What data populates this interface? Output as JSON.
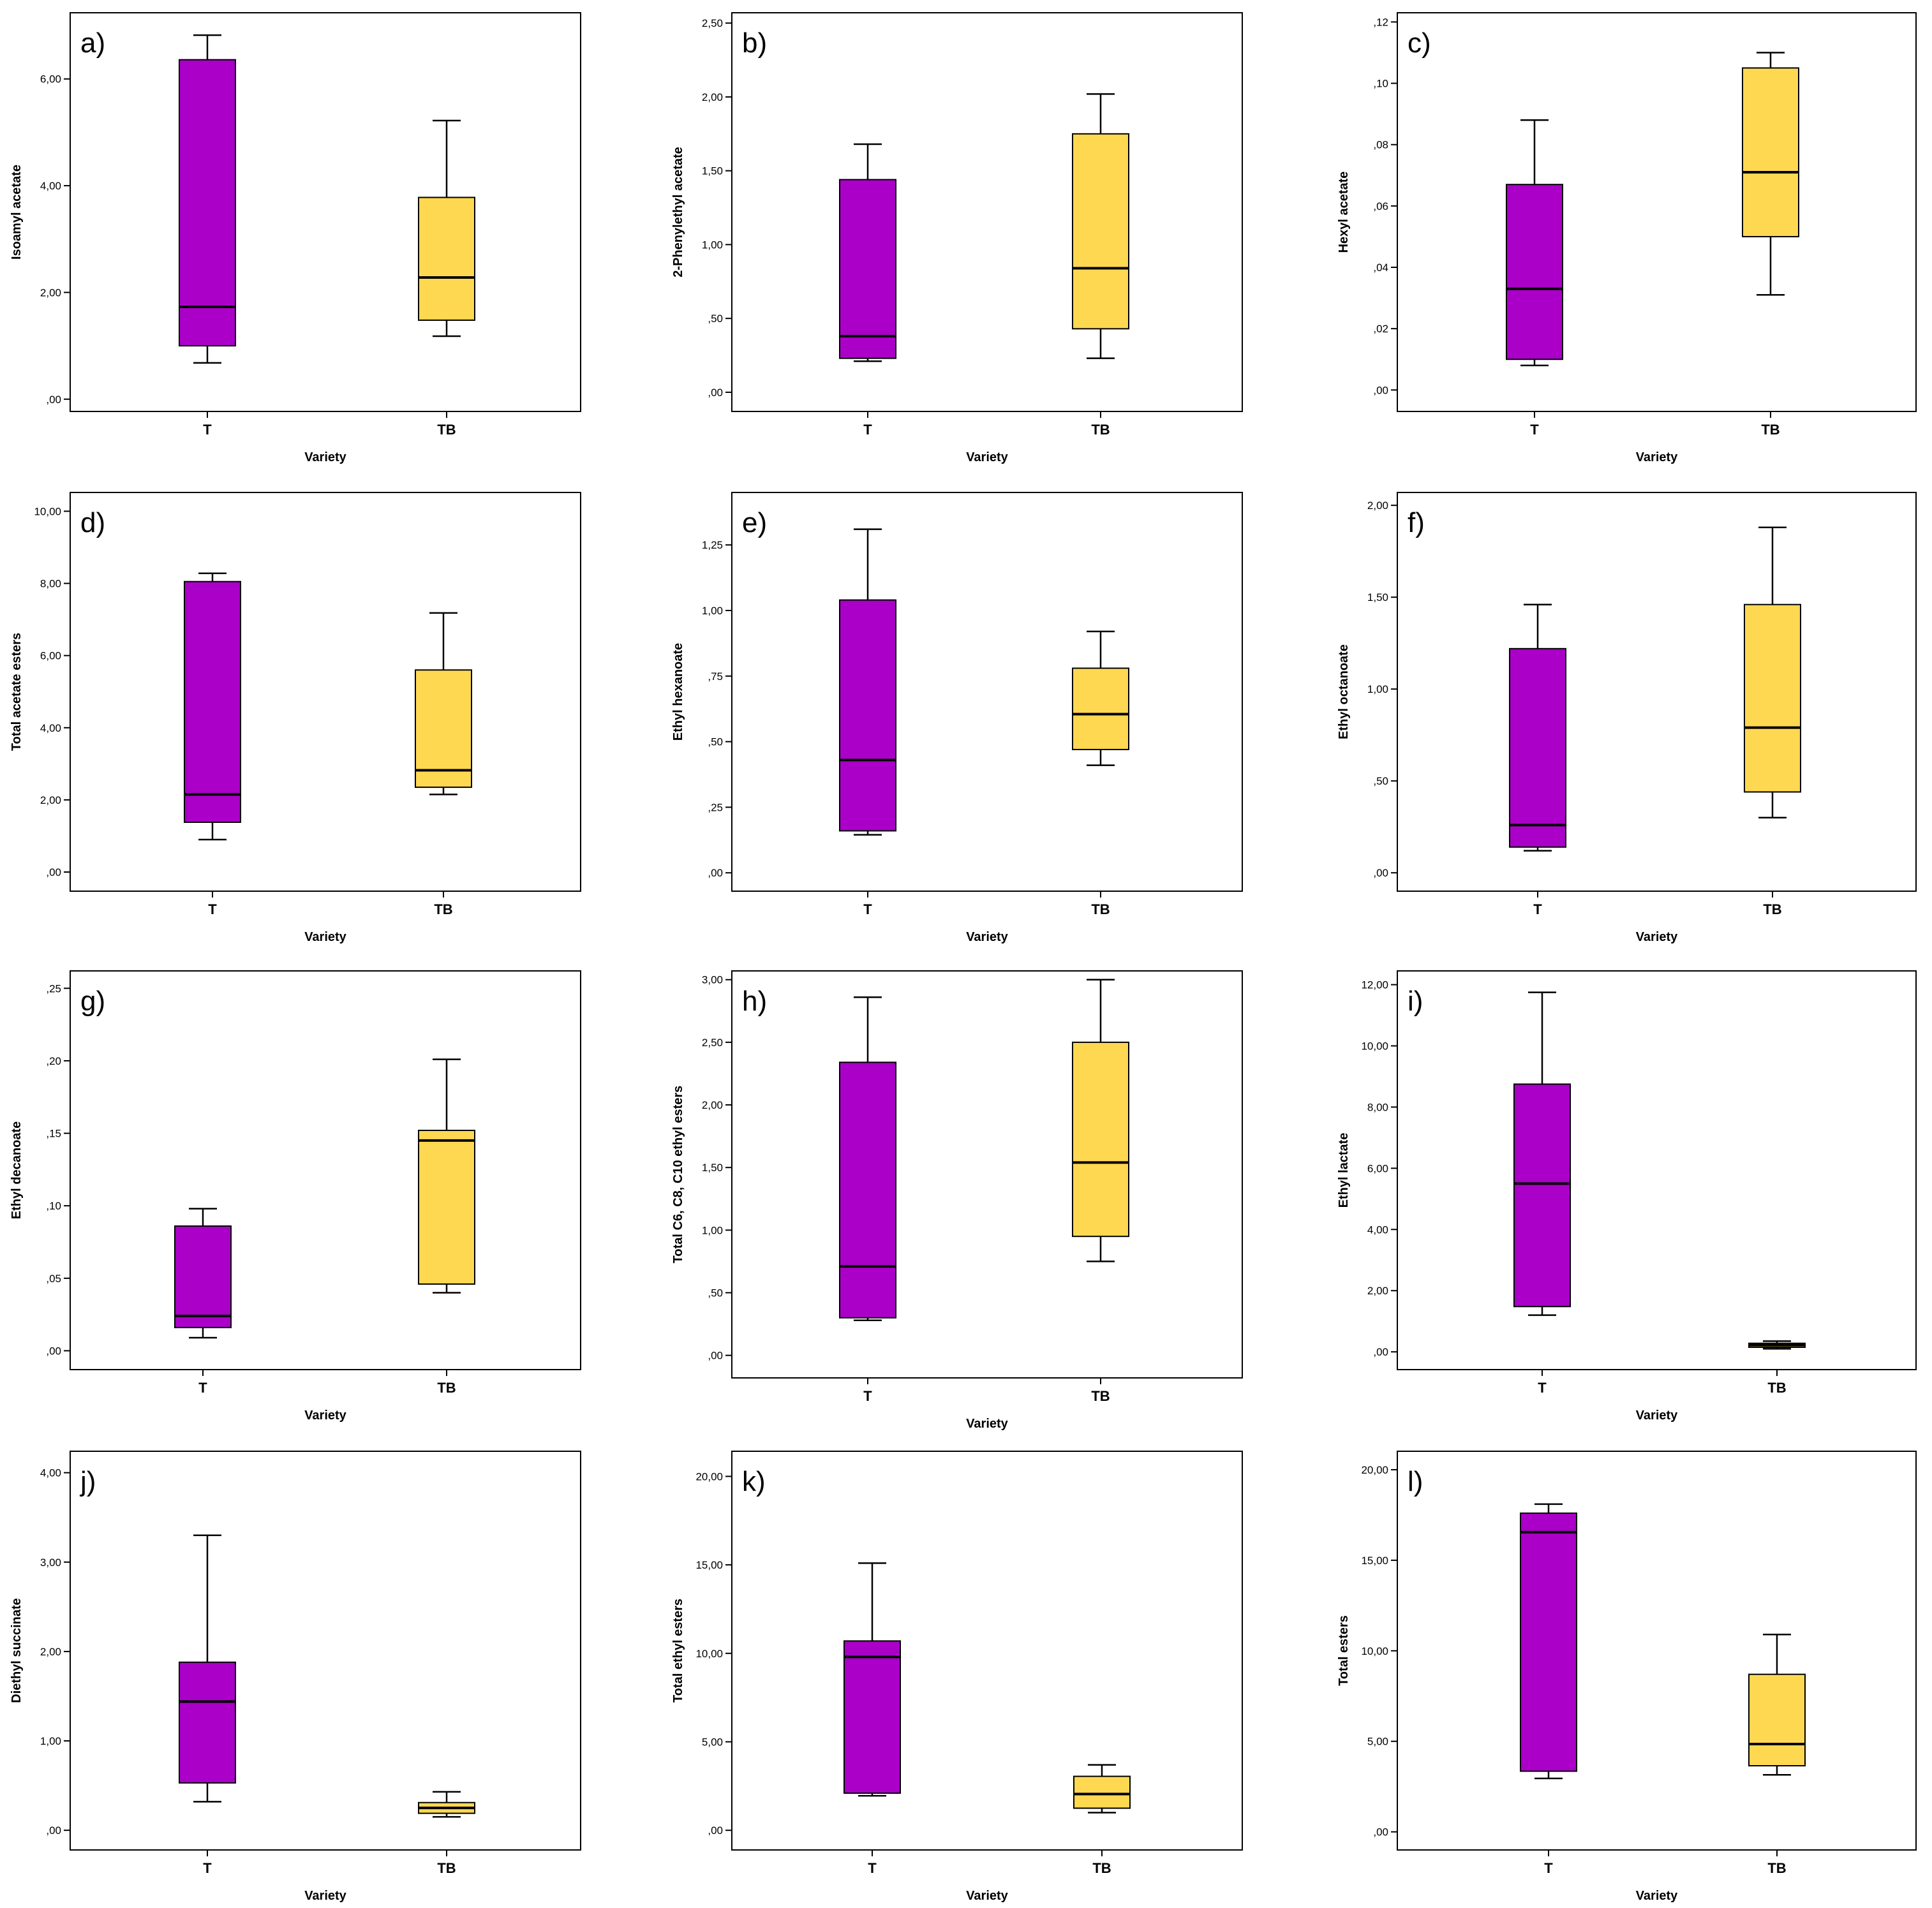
{
  "colors": {
    "T": "#AA00C8",
    "TB": "#FFD852",
    "stroke": "#000000"
  },
  "chart_data": [
    {
      "type": "boxplot",
      "panel_label": "a)",
      "xlabel": "Variety",
      "ylabel": "Isoamyl acetate",
      "categories": [
        "T",
        "TB"
      ],
      "boxes": [
        {
          "category": "T",
          "min": 0.68,
          "q1": 1.0,
          "median": 1.73,
          "q3": 6.36,
          "max": 6.82
        },
        {
          "category": "TB",
          "min": 1.18,
          "q1": 1.48,
          "median": 2.28,
          "q3": 3.78,
          "max": 5.22
        }
      ],
      "ylim": [
        -0.23,
        7.24
      ],
      "yticks": [
        0,
        2,
        4,
        6
      ],
      "ytick_labels": [
        ",00",
        "2,00",
        "4,00",
        "6,00"
      ]
    },
    {
      "type": "boxplot",
      "panel_label": "b)",
      "xlabel": "Variety",
      "ylabel": "2-Phenylethyl acetate",
      "categories": [
        "T",
        "TB"
      ],
      "boxes": [
        {
          "category": "T",
          "min": 0.21,
          "q1": 0.23,
          "median": 0.38,
          "q3": 1.44,
          "max": 1.68
        },
        {
          "category": "TB",
          "min": 0.23,
          "q1": 0.43,
          "median": 0.84,
          "q3": 1.75,
          "max": 2.02
        }
      ],
      "ylim": [
        -0.13,
        2.57
      ],
      "yticks": [
        0,
        0.5,
        1.0,
        1.5,
        2.0,
        2.5
      ],
      "ytick_labels": [
        ",00",
        ",50",
        "1,00",
        "1,50",
        "2,00",
        "2,50"
      ]
    },
    {
      "type": "boxplot",
      "panel_label": "c)",
      "xlabel": "Variety",
      "ylabel": "Hexyl acetate",
      "categories": [
        "T",
        "TB"
      ],
      "boxes": [
        {
          "category": "T",
          "min": 0.008,
          "q1": 0.01,
          "median": 0.033,
          "q3": 0.067,
          "max": 0.088
        },
        {
          "category": "TB",
          "min": 0.031,
          "q1": 0.05,
          "median": 0.071,
          "q3": 0.105,
          "max": 0.11
        }
      ],
      "ylim": [
        -0.007,
        0.123
      ],
      "yticks": [
        0,
        0.02,
        0.04,
        0.06,
        0.08,
        0.1,
        0.12
      ],
      "ytick_labels": [
        ",00",
        ",02",
        ",04",
        ",06",
        ",08",
        ",10",
        ",12"
      ]
    },
    {
      "type": "boxplot",
      "panel_label": "d)",
      "xlabel": "Variety",
      "ylabel": "Total acetate esters",
      "categories": [
        "T",
        "TB"
      ],
      "boxes": [
        {
          "category": "T",
          "min": 0.9,
          "q1": 1.38,
          "median": 2.15,
          "q3": 8.05,
          "max": 8.28
        },
        {
          "category": "TB",
          "min": 2.15,
          "q1": 2.35,
          "median": 2.82,
          "q3": 5.6,
          "max": 7.18
        }
      ],
      "ylim": [
        -0.53,
        10.52
      ],
      "yticks": [
        0,
        2,
        4,
        6,
        8,
        10
      ],
      "ytick_labels": [
        ",00",
        "2,00",
        "4,00",
        "6,00",
        "8,00",
        "10,00"
      ]
    },
    {
      "type": "boxplot",
      "panel_label": "e)",
      "xlabel": "Variety",
      "ylabel": "Ethyl hexanoate",
      "categories": [
        "T",
        "TB"
      ],
      "boxes": [
        {
          "category": "T",
          "min": 0.145,
          "q1": 0.16,
          "median": 0.43,
          "q3": 1.04,
          "max": 1.31
        },
        {
          "category": "TB",
          "min": 0.41,
          "q1": 0.47,
          "median": 0.605,
          "q3": 0.78,
          "max": 0.92
        }
      ],
      "ylim": [
        -0.07,
        1.45
      ],
      "yticks": [
        0,
        0.25,
        0.5,
        0.75,
        1.0,
        1.25
      ],
      "ytick_labels": [
        ",00",
        ",25",
        ",50",
        ",75",
        "1,00",
        "1,25"
      ]
    },
    {
      "type": "boxplot",
      "panel_label": "f)",
      "xlabel": "Variety",
      "ylabel": "Ethyl octanoate",
      "categories": [
        "T",
        "TB"
      ],
      "boxes": [
        {
          "category": "T",
          "min": 0.12,
          "q1": 0.14,
          "median": 0.26,
          "q3": 1.22,
          "max": 1.46
        },
        {
          "category": "TB",
          "min": 0.3,
          "q1": 0.44,
          "median": 0.79,
          "q3": 1.46,
          "max": 1.88
        }
      ],
      "ylim": [
        -0.1,
        2.07
      ],
      "yticks": [
        0,
        0.5,
        1.0,
        1.5,
        2.0
      ],
      "ytick_labels": [
        ",00",
        ",50",
        "1,00",
        "1,50",
        "2,00"
      ]
    },
    {
      "type": "boxplot",
      "panel_label": "g)",
      "xlabel": "Variety",
      "ylabel": "Ethyl decanoate",
      "categories": [
        "T",
        "TB"
      ],
      "boxes": [
        {
          "category": "T",
          "min": 0.009,
          "q1": 0.016,
          "median": 0.024,
          "q3": 0.086,
          "max": 0.098
        },
        {
          "category": "TB",
          "min": 0.04,
          "q1": 0.046,
          "median": 0.145,
          "q3": 0.152,
          "max": 0.201
        }
      ],
      "ylim": [
        -0.013,
        0.262
      ],
      "yticks": [
        0,
        0.05,
        0.1,
        0.15,
        0.2,
        0.25
      ],
      "ytick_labels": [
        ",00",
        ",05",
        ",10",
        ",15",
        ",20",
        ",25"
      ]
    },
    {
      "type": "boxplot",
      "panel_label": "h)",
      "xlabel": "Variety",
      "ylabel": "Total C6, C8, C10 ethyl esters",
      "categories": [
        "T",
        "TB"
      ],
      "boxes": [
        {
          "category": "T",
          "min": 0.28,
          "q1": 0.3,
          "median": 0.71,
          "q3": 2.34,
          "max": 2.86
        },
        {
          "category": "TB",
          "min": 0.75,
          "q1": 0.95,
          "median": 1.54,
          "q3": 2.5,
          "max": 3.0
        }
      ],
      "ylim": [
        -0.18,
        3.07
      ],
      "yticks": [
        0,
        0.5,
        1.0,
        1.5,
        2.0,
        2.5,
        3.0
      ],
      "ytick_labels": [
        ",00",
        ",50",
        "1,00",
        "1,50",
        "2,00",
        "2,50",
        "3,00"
      ]
    },
    {
      "type": "boxplot",
      "panel_label": "i)",
      "xlabel": "Variety",
      "ylabel": "Ethyl lactate",
      "categories": [
        "T",
        "TB"
      ],
      "boxes": [
        {
          "category": "T",
          "min": 1.2,
          "q1": 1.48,
          "median": 5.5,
          "q3": 8.75,
          "max": 11.75
        },
        {
          "category": "TB",
          "min": 0.1,
          "q1": 0.15,
          "median": 0.22,
          "q3": 0.28,
          "max": 0.35
        }
      ],
      "ylim": [
        -0.58,
        12.45
      ],
      "yticks": [
        0,
        2,
        4,
        6,
        8,
        10,
        12
      ],
      "ytick_labels": [
        ",00",
        "2,00",
        "4,00",
        "6,00",
        "8,00",
        "10,00",
        "12,00"
      ]
    },
    {
      "type": "boxplot",
      "panel_label": "j)",
      "xlabel": "Variety",
      "ylabel": "Diethyl succinate",
      "categories": [
        "T",
        "TB"
      ],
      "boxes": [
        {
          "category": "T",
          "min": 0.32,
          "q1": 0.53,
          "median": 1.44,
          "q3": 1.88,
          "max": 3.3
        },
        {
          "category": "TB",
          "min": 0.15,
          "q1": 0.19,
          "median": 0.25,
          "q3": 0.31,
          "max": 0.43
        }
      ],
      "ylim": [
        -0.22,
        4.24
      ],
      "yticks": [
        0,
        1,
        2,
        3,
        4
      ],
      "ytick_labels": [
        ",00",
        "1,00",
        "2,00",
        "3,00",
        "4,00"
      ]
    },
    {
      "type": "boxplot",
      "panel_label": "k)",
      "xlabel": "Variety",
      "ylabel": "Total ethyl esters",
      "categories": [
        "T",
        "TB"
      ],
      "boxes": [
        {
          "category": "T",
          "min": 1.95,
          "q1": 2.1,
          "median": 9.8,
          "q3": 10.7,
          "max": 15.1
        },
        {
          "category": "TB",
          "min": 1.0,
          "q1": 1.25,
          "median": 2.05,
          "q3": 3.05,
          "max": 3.7
        }
      ],
      "ylim": [
        -1.11,
        21.42
      ],
      "yticks": [
        0,
        5,
        10,
        15,
        20
      ],
      "ytick_labels": [
        ",00",
        "5,00",
        "10,00",
        "15,00",
        "20,00"
      ]
    },
    {
      "type": "boxplot",
      "panel_label": "l)",
      "xlabel": "Variety",
      "ylabel": "Total esters",
      "categories": [
        "T",
        "TB"
      ],
      "boxes": [
        {
          "category": "T",
          "min": 2.95,
          "q1": 3.35,
          "median": 16.55,
          "q3": 17.6,
          "max": 18.1
        },
        {
          "category": "TB",
          "min": 3.15,
          "q1": 3.65,
          "median": 4.85,
          "q3": 8.7,
          "max": 10.9
        }
      ],
      "ylim": [
        -1.0,
        21.02
      ],
      "yticks": [
        0,
        5,
        10,
        15,
        20
      ],
      "ytick_labels": [
        ",00",
        "5,00",
        "10,00",
        "15,00",
        "20,00"
      ]
    }
  ]
}
